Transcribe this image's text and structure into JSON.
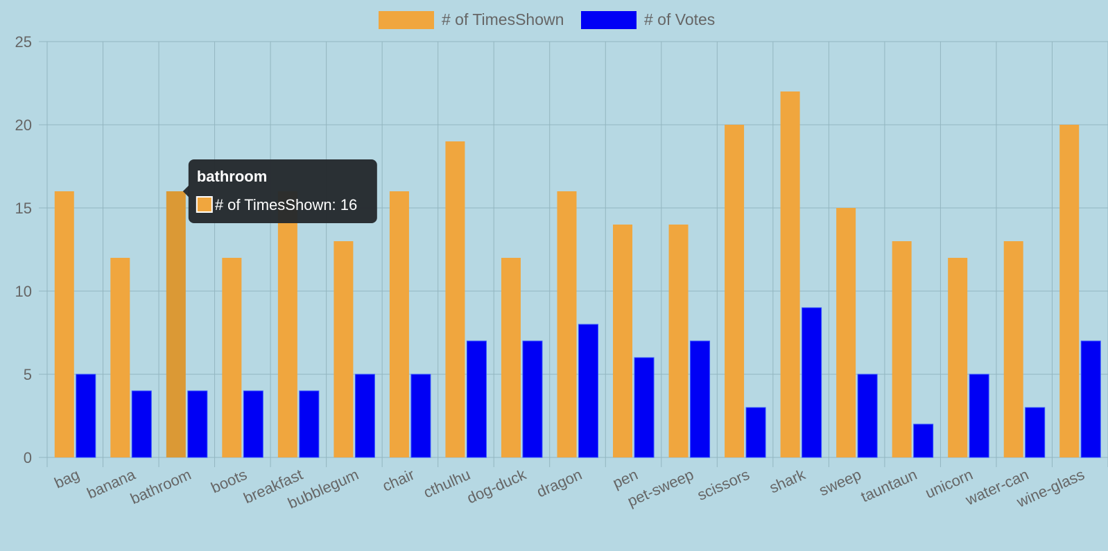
{
  "colors": {
    "background": "#b6d8e3",
    "times_shown": "#f0a63e",
    "times_shown_hover": "#db9935",
    "votes": "#0000f5",
    "grid": "#93b6c0",
    "axis_text": "#666666",
    "tooltip_bg": "#24292d",
    "tooltip_text": "#ffffff"
  },
  "chart_data": {
    "type": "bar",
    "categories": [
      "bag",
      "banana",
      "bathroom",
      "boots",
      "breakfast",
      "bubblegum",
      "chair",
      "cthulhu",
      "dog-duck",
      "dragon",
      "pen",
      "pet-sweep",
      "scissors",
      "shark",
      "sweep",
      "tauntaun",
      "unicorn",
      "water-can",
      "wine-glass"
    ],
    "series": [
      {
        "name": "# of TimesShown",
        "values": [
          16,
          12,
          16,
          12,
          16,
          13,
          16,
          19,
          12,
          16,
          14,
          14,
          20,
          22,
          15,
          13,
          12,
          13,
          20
        ]
      },
      {
        "name": "# of Votes",
        "values": [
          5,
          4,
          4,
          4,
          4,
          5,
          5,
          7,
          7,
          8,
          6,
          7,
          3,
          9,
          5,
          2,
          5,
          3,
          7
        ]
      }
    ],
    "title": "",
    "xlabel": "",
    "ylabel": "",
    "ylim": [
      0,
      25
    ],
    "yticks": [
      0,
      5,
      10,
      15,
      20,
      25
    ],
    "grid": true,
    "legend_position": "top-center"
  },
  "tooltip": {
    "category": "bathroom",
    "category_index": 2,
    "series_index": 0,
    "title": "bathroom",
    "body": "# of TimesShown: 16"
  }
}
